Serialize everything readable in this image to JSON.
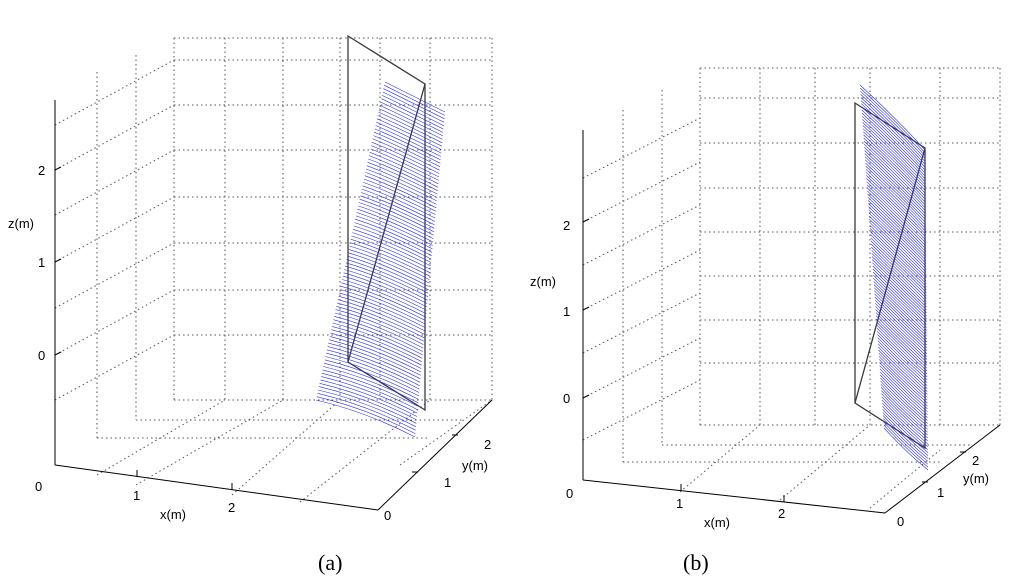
{
  "figure": {
    "captions": [
      {
        "letter": "a",
        "text": "(a)"
      },
      {
        "letter": "b",
        "text": "(b)"
      }
    ]
  },
  "panels": [
    {
      "id": "a",
      "x_label": "x(m)",
      "y_label": "y(m)",
      "z_label": "z(m)",
      "x_ticks": [
        "0",
        "1",
        "2"
      ],
      "y_ticks": [
        "0",
        "1",
        "2"
      ],
      "z_ticks": [
        "0",
        "1",
        "2"
      ]
    },
    {
      "id": "b",
      "x_label": "x(m)",
      "y_label": "y(m)",
      "z_label": "z(m)",
      "x_ticks": [
        "0",
        "1",
        "2"
      ],
      "y_ticks": [
        "0",
        "1",
        "2"
      ],
      "z_ticks": [
        "0",
        "1",
        "2"
      ]
    }
  ],
  "chart_data": [
    {
      "type": "surface3d",
      "panel": "a",
      "xlabel": "x(m)",
      "ylabel": "y(m)",
      "zlabel": "z(m)",
      "xticks": [
        0,
        1,
        2
      ],
      "yticks": [
        0,
        1,
        2
      ],
      "zticks": [
        0,
        1,
        2
      ],
      "xlim": [
        0,
        3
      ],
      "ylim": [
        0,
        2.5
      ],
      "zlim": [
        -1,
        2.7
      ],
      "grid": true,
      "series": [
        {
          "kind": "wireframe-plane",
          "color": "#333333"
        },
        {
          "kind": "point-surface",
          "color": "#2a2ae6"
        }
      ]
    },
    {
      "type": "surface3d",
      "panel": "b",
      "xlabel": "x(m)",
      "ylabel": "y(m)",
      "zlabel": "z(m)",
      "xticks": [
        0,
        1,
        2
      ],
      "yticks": [
        0,
        1,
        2
      ],
      "zticks": [
        0,
        1,
        2
      ],
      "xlim": [
        0,
        3
      ],
      "ylim": [
        0,
        2.5
      ],
      "zlim": [
        -0.7,
        2.8
      ],
      "grid": true,
      "series": [
        {
          "kind": "wireframe-plane",
          "color": "#333333"
        },
        {
          "kind": "point-surface",
          "color": "#1414e6"
        }
      ]
    }
  ],
  "colors": {
    "surface_a": "#3030e0",
    "surface_b": "#1818e8",
    "frame": "#3a3a3a",
    "grid": "#555555"
  }
}
